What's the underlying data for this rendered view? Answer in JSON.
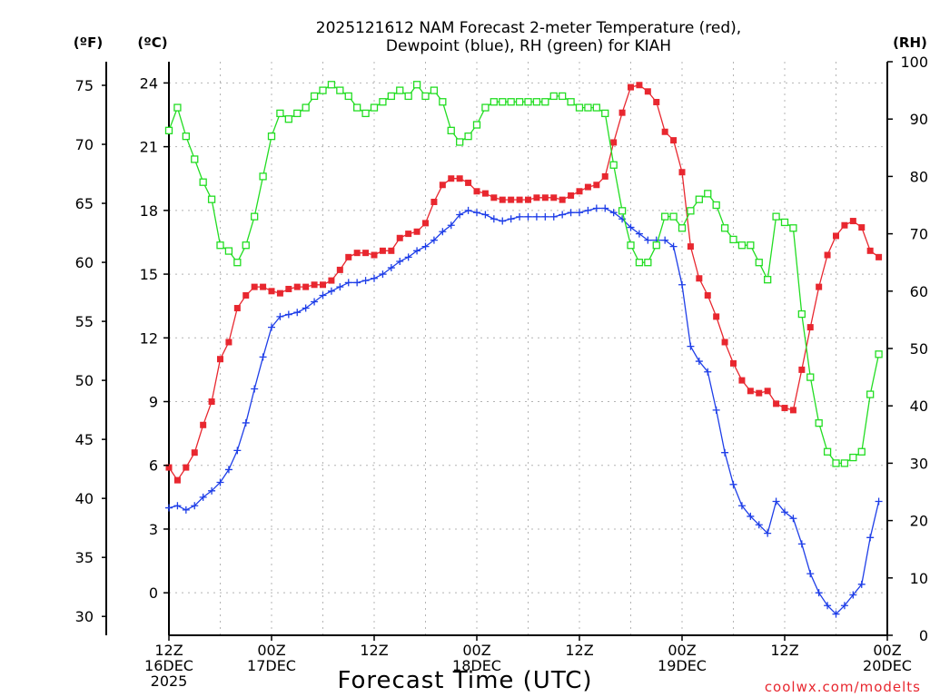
{
  "chart_data": {
    "type": "line",
    "title": [
      "2025121612 NAM Forecast 2-meter Temperature (red),",
      "Dewpoint (blue), RH (green) for KIAH"
    ],
    "xlabel": "Forecast Time (UTC)",
    "credit": "coolwx.com/modelts",
    "left_outer_axis": {
      "unit": "(ºF)",
      "ticks": [
        30,
        35,
        40,
        45,
        50,
        55,
        60,
        65,
        70,
        75
      ]
    },
    "left_inner_axis": {
      "unit": "(ºC)",
      "ticks": [
        0,
        3,
        6,
        9,
        12,
        15,
        18,
        21,
        24
      ],
      "ylim": [
        -2,
        25
      ]
    },
    "right_axis": {
      "unit": "(RH)",
      "ticks": [
        0,
        10,
        20,
        30,
        40,
        50,
        60,
        70,
        80,
        90,
        100
      ],
      "ylim": [
        0,
        100
      ]
    },
    "x_range_hours": [
      0,
      84
    ],
    "x_ticks": [
      {
        "hour": 0,
        "lines": [
          "12Z",
          "16DEC",
          "2025"
        ]
      },
      {
        "hour": 12,
        "lines": [
          "00Z",
          "17DEC"
        ]
      },
      {
        "hour": 24,
        "lines": [
          "12Z"
        ]
      },
      {
        "hour": 36,
        "lines": [
          "00Z",
          "18DEC"
        ]
      },
      {
        "hour": 48,
        "lines": [
          "12Z"
        ]
      },
      {
        "hour": 60,
        "lines": [
          "00Z",
          "19DEC"
        ]
      },
      {
        "hour": 72,
        "lines": [
          "12Z"
        ]
      },
      {
        "hour": 84,
        "lines": [
          "00Z",
          "20DEC"
        ]
      }
    ],
    "series": [
      {
        "name": "Temperature (°C)",
        "color": "#e8272f",
        "marker": "filled-square",
        "axis": "celsius",
        "values": [
          5.9,
          5.3,
          5.9,
          6.6,
          7.9,
          9.0,
          11.0,
          11.8,
          13.4,
          14.0,
          14.4,
          14.4,
          14.2,
          14.1,
          14.3,
          14.4,
          14.4,
          14.5,
          14.5,
          14.7,
          15.2,
          15.8,
          16.0,
          16.0,
          15.9,
          16.1,
          16.1,
          16.7,
          16.9,
          17.0,
          17.4,
          18.4,
          19.2,
          19.5,
          19.5,
          19.3,
          18.9,
          18.8,
          18.6,
          18.5,
          18.5,
          18.5,
          18.5,
          18.6,
          18.6,
          18.6,
          18.5,
          18.7,
          18.9,
          19.1,
          19.2,
          19.6,
          21.2,
          22.6,
          23.8,
          23.9,
          23.6,
          23.1,
          21.7,
          21.3,
          19.8,
          16.3,
          14.8,
          14.0,
          13.0,
          11.8,
          10.8,
          10.0,
          9.5,
          9.4,
          9.5,
          8.9,
          8.7,
          8.6,
          10.5,
          12.5,
          14.4,
          15.9,
          16.8,
          17.3,
          17.5,
          17.2,
          16.1,
          15.8
        ]
      },
      {
        "name": "Dewpoint (°C)",
        "color": "#1e3ee8",
        "marker": "plus",
        "axis": "celsius",
        "values": [
          4.0,
          4.1,
          3.9,
          4.1,
          4.5,
          4.8,
          5.2,
          5.8,
          6.7,
          8.0,
          9.6,
          11.1,
          12.5,
          13.0,
          13.1,
          13.2,
          13.4,
          13.7,
          14.0,
          14.2,
          14.4,
          14.6,
          14.6,
          14.7,
          14.8,
          15.0,
          15.3,
          15.6,
          15.8,
          16.1,
          16.3,
          16.6,
          17.0,
          17.3,
          17.8,
          18.0,
          17.9,
          17.8,
          17.6,
          17.5,
          17.6,
          17.7,
          17.7,
          17.7,
          17.7,
          17.7,
          17.8,
          17.9,
          17.9,
          18.0,
          18.1,
          18.1,
          17.9,
          17.6,
          17.2,
          16.9,
          16.6,
          16.6,
          16.6,
          16.3,
          14.5,
          11.6,
          10.9,
          10.4,
          8.6,
          6.6,
          5.1,
          4.1,
          3.6,
          3.2,
          2.8,
          4.3,
          3.8,
          3.5,
          2.3,
          0.9,
          0.0,
          -0.6,
          -1.0,
          -0.6,
          -0.1,
          0.4,
          2.6,
          4.3
        ]
      },
      {
        "name": "RH (%)",
        "color": "#22dd22",
        "marker": "open-square",
        "axis": "rh",
        "values": [
          88,
          92,
          87,
          83,
          79,
          76,
          68,
          67,
          65,
          68,
          73,
          80,
          87,
          91,
          90,
          91,
          92,
          94,
          95,
          96,
          95,
          94,
          92,
          91,
          92,
          93,
          94,
          95,
          94,
          96,
          94,
          95,
          93,
          88,
          86,
          87,
          89,
          92,
          93,
          93,
          93,
          93,
          93,
          93,
          93,
          94,
          94,
          93,
          92,
          92,
          92,
          91,
          82,
          74,
          68,
          65,
          65,
          68,
          73,
          73,
          71,
          74,
          76,
          77,
          75,
          71,
          69,
          68,
          68,
          65,
          62,
          73,
          72,
          71,
          56,
          45,
          37,
          32,
          30,
          30,
          31,
          32,
          42,
          49
        ]
      }
    ]
  }
}
